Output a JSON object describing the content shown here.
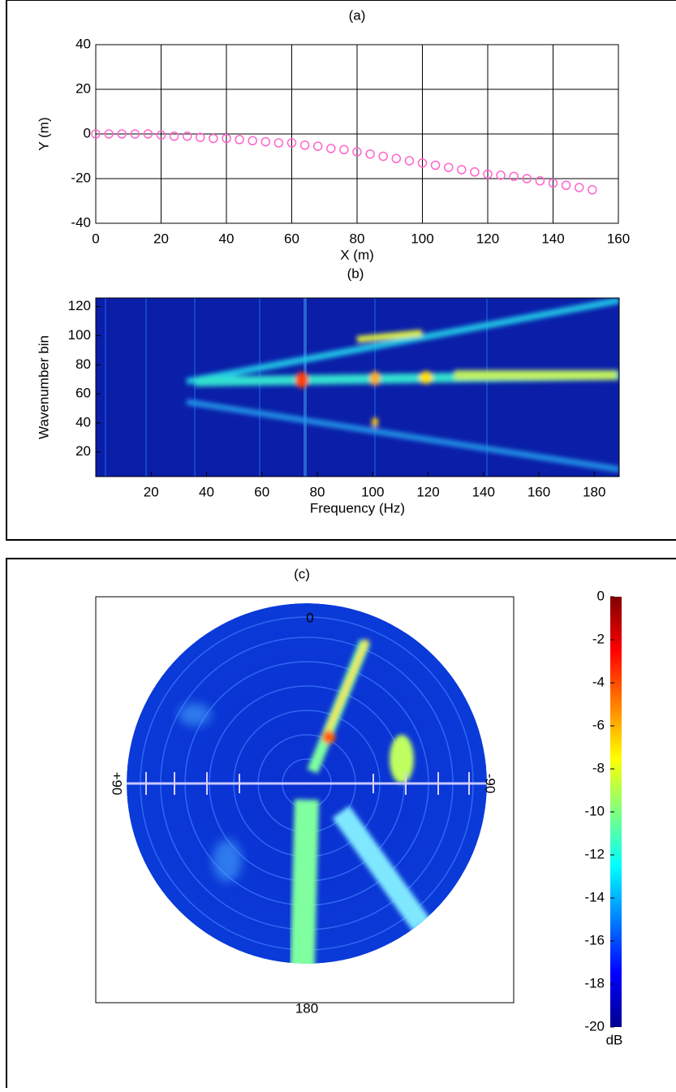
{
  "chart_data": [
    {
      "type": "scatter",
      "title": "(a)",
      "xlabel": "X (m)",
      "ylabel": "Y (m)",
      "x": [
        0,
        4,
        8,
        12,
        16,
        20,
        24,
        28,
        32,
        36,
        40,
        44,
        48,
        52,
        56,
        60,
        64,
        68,
        72,
        76,
        80,
        84,
        88,
        92,
        96,
        100,
        104,
        108,
        112,
        116,
        120,
        124,
        128,
        132,
        136,
        140,
        144,
        148,
        152
      ],
      "values": [
        0,
        0,
        0,
        0,
        0,
        -0.5,
        -1,
        -1,
        -1.5,
        -2,
        -2,
        -2.5,
        -3,
        -3.5,
        -4,
        -4,
        -5,
        -5.5,
        -6.5,
        -7,
        -8,
        -9,
        -10,
        -11,
        -12,
        -13,
        -14,
        -15,
        -16,
        -17,
        -18,
        -18.5,
        -19,
        -20,
        -21,
        -22,
        -23,
        -24,
        -25
      ],
      "color": "#ff66cc",
      "xlim": [
        0,
        160
      ],
      "ylim": [
        -40,
        40
      ],
      "xticks": [
        0,
        20,
        40,
        60,
        80,
        100,
        120,
        140,
        160
      ],
      "yticks": [
        -40,
        -20,
        0,
        20,
        40
      ],
      "grid": true
    },
    {
      "type": "heatmap",
      "title": "(b)",
      "xlabel": "Frequency (Hz)",
      "ylabel": "Wavenumber bin",
      "xlim": [
        0,
        189
      ],
      "ylim": [
        3,
        126
      ],
      "xticks": [
        20,
        40,
        60,
        80,
        100,
        120,
        140,
        160,
        180
      ],
      "yticks": [
        20,
        40,
        60,
        80,
        100,
        120
      ]
    },
    {
      "type": "polar",
      "title": "(c)",
      "angle_labels": [
        "0",
        "+90",
        "-90",
        "180"
      ],
      "colorbar": {
        "label": "dB",
        "lim": [
          -20,
          0
        ],
        "ticks": [
          0,
          -2,
          -4,
          -6,
          -8,
          -10,
          -12,
          -14,
          -16,
          -18,
          -20
        ]
      }
    }
  ]
}
